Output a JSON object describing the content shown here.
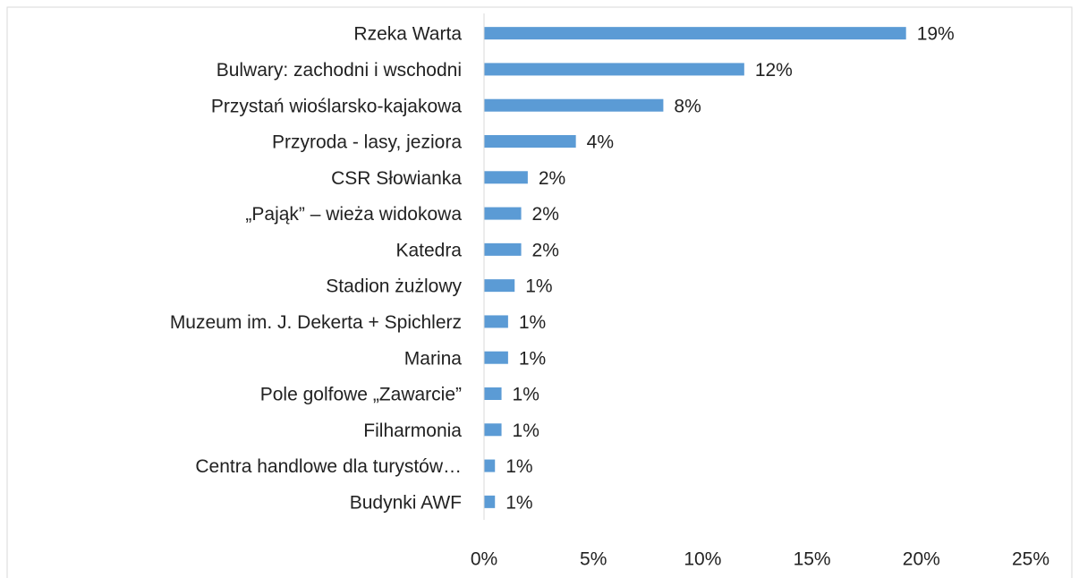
{
  "chart_data": {
    "type": "barh",
    "categories": [
      "Rzeka Warta",
      "Bulwary: zachodni i wschodni",
      "Przystań wioślarsko-kajakowa",
      "Przyroda - lasy, jeziora",
      "CSR Słowianka",
      "„Pająk” – wieża widokowa",
      "Katedra",
      "Stadion żużlowy",
      "Muzeum im. J. Dekerta + Spichlerz",
      "Marina",
      "Pole golfowe „Zawarcie”",
      "Filharmonia",
      "Centra handlowe dla turystów…",
      "Budynki AWF"
    ],
    "values": [
      19.3,
      11.9,
      8.2,
      4.2,
      2.0,
      1.7,
      1.7,
      1.4,
      1.1,
      1.1,
      0.8,
      0.8,
      0.5,
      0.5
    ],
    "value_labels": [
      "19%",
      "12%",
      "8%",
      "4%",
      "2%",
      "2%",
      "2%",
      "1%",
      "1%",
      "1%",
      "1%",
      "1%",
      "1%",
      "1%"
    ],
    "color": "#5b9bd5",
    "xlim": [
      0,
      25
    ],
    "xticks": [
      {
        "value": 0,
        "label": "0%"
      },
      {
        "value": 5,
        "label": "5%"
      },
      {
        "value": 10,
        "label": "10%"
      },
      {
        "value": 15,
        "label": "15%"
      },
      {
        "value": 20,
        "label": "20%"
      },
      {
        "value": 25,
        "label": "25%"
      }
    ],
    "grid": false
  }
}
